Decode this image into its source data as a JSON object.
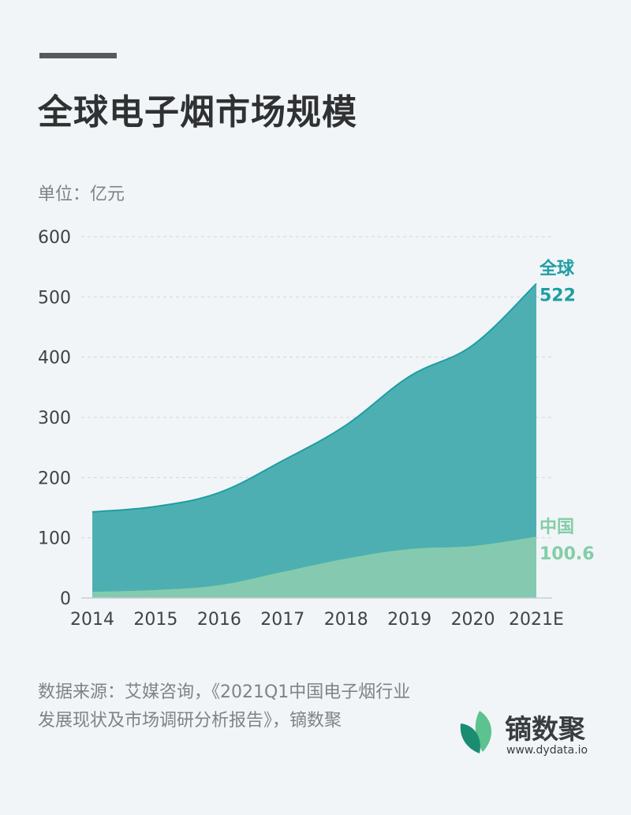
{
  "header": {
    "title": "全球电子烟市场规模",
    "unit": "单位：亿元"
  },
  "chart_data": {
    "type": "area",
    "categories": [
      "2014",
      "2015",
      "2016",
      "2017",
      "2018",
      "2019",
      "2020",
      "2021E"
    ],
    "series": [
      {
        "name": "全球",
        "values": [
          143,
          152,
          175,
          228,
          287,
          368,
          420,
          522
        ],
        "color": "#1e9ea3",
        "fill": "#4eafb3",
        "end_label": "522"
      },
      {
        "name": "中国",
        "values": [
          9,
          12,
          20,
          42,
          64,
          80,
          85,
          100.6
        ],
        "color": "#84cda8",
        "fill": "#84c9b0",
        "end_label": "100.6"
      }
    ],
    "yticks": [
      0,
      100,
      200,
      300,
      400,
      500,
      600
    ],
    "ylim": [
      0,
      600
    ],
    "grid": true,
    "grid_style": "dashed"
  },
  "footer": {
    "source": "数据来源：艾媒咨询，《2021Q1中国电子烟行业发展现状及市场调研分析报告》，镝数聚"
  },
  "brand": {
    "name": "镝数聚",
    "url": "www.dydata.io",
    "colors": {
      "leaf_dark": "#1a8c72",
      "leaf_light": "#5cc28f"
    }
  }
}
